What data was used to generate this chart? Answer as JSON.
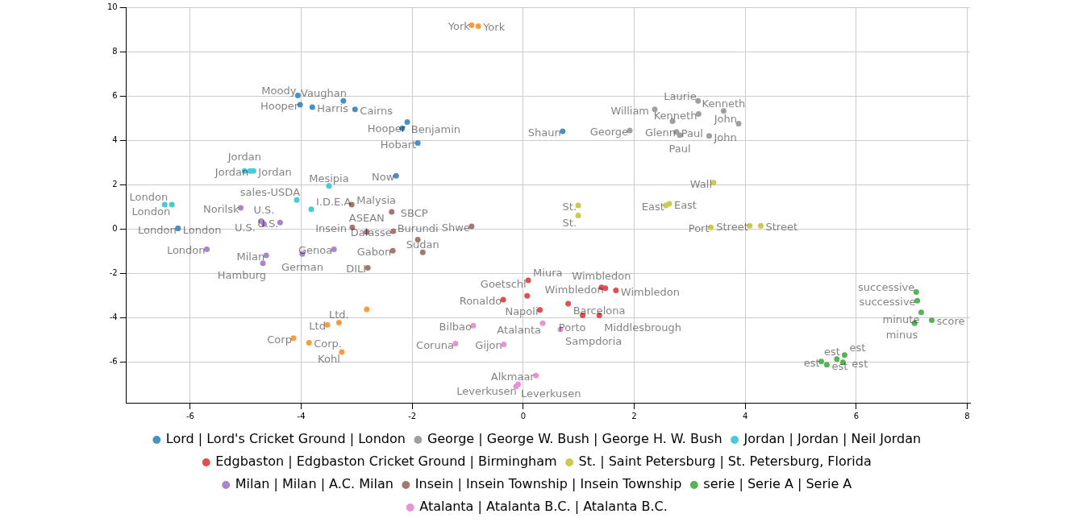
{
  "chart_data": {
    "type": "scatter",
    "xlim": [
      -7.15,
      8.05
    ],
    "ylim": [
      -7.85,
      10
    ],
    "xticks": [
      -6,
      -4,
      -2,
      0,
      2,
      4,
      6,
      8
    ],
    "yticks": [
      -6,
      -4,
      -2,
      0,
      2,
      4,
      6,
      8,
      10
    ],
    "grid": true,
    "legend": "bottom",
    "marker": "circle",
    "series": [
      {
        "name": "Lord | Lord's Cricket Ground | London",
        "color": "#4a90c2",
        "x": [
          -6.22,
          -4.06,
          -4.02,
          -3.8,
          -3.24,
          -3.03,
          -2.09,
          -2.18,
          -1.9,
          -2.29,
          0.71
        ],
        "values": [
          0.02,
          6.02,
          5.6,
          5.49,
          5.77,
          5.39,
          4.82,
          4.54,
          3.87,
          2.39,
          4.4
        ],
        "value_labels": [
          "London",
          "Moody",
          "Hooper",
          "Harris",
          "Vaughan",
          "Cairns",
          "Hooper",
          "Benjamin",
          "Hobart",
          "Now",
          "Shaun"
        ]
      },
      {
        "name": "George | George W. Bush | George H. W. Bush",
        "color": "#a0a0a0",
        "x": [
          1.92,
          2.37,
          3.15,
          3.16,
          3.61,
          2.69,
          2.76,
          2.82,
          3.35,
          3.88
        ],
        "values": [
          4.44,
          5.39,
          5.77,
          5.18,
          5.32,
          4.86,
          4.37,
          4.23,
          4.19,
          4.75
        ],
        "value_labels": [
          "George",
          "William",
          "Laurie",
          "Kenneth",
          "Kenneth",
          "Glenn",
          "Paul",
          "Paul",
          "John",
          "John"
        ]
      },
      {
        "name": "Jordan | Jordan | Neil Jordan",
        "color": "#45cbd9",
        "x": [
          -6.46,
          -6.33,
          -5.02,
          -4.92,
          -4.86,
          -3.5,
          -4.08,
          -3.82
        ],
        "values": [
          1.09,
          1.09,
          2.61,
          2.61,
          2.61,
          1.94,
          1.3,
          0.88
        ],
        "value_labels": [
          "London",
          "London",
          "Jordan",
          "Jordan",
          "Jordan",
          "Mesipia",
          "sales-USDA",
          "I.D.E.A"
        ]
      },
      {
        "name": "Edgbaston | Edgbaston Cricket Ground | Birmingham",
        "color": "#e05050",
        "x": [
          0.09,
          0.07,
          -0.36,
          0.3,
          0.81,
          1.07,
          1.37,
          1.41,
          1.48,
          1.67
        ],
        "values": [
          -2.32,
          -3.02,
          -3.2,
          -3.66,
          -3.38,
          -3.91,
          -3.91,
          -2.64,
          -2.68,
          -2.78
        ],
        "value_labels": [
          "Miura",
          "Goetschl",
          "Ronaldo",
          "Napoli",
          "Barcelona",
          "Porto",
          "Middlesbrough",
          "Wimbledon",
          "Wimbledon",
          "Wimbledon"
        ]
      },
      {
        "name": "St. | Saint Petersburg | St. Petersburg, Florida",
        "color": "#c9ca4e",
        "x": [
          0.99,
          0.99,
          3.43,
          2.57,
          2.63,
          3.38,
          4.08,
          4.28
        ],
        "values": [
          1.06,
          0.6,
          2.08,
          1.06,
          1.13,
          0.07,
          0.14,
          0.14
        ],
        "value_labels": [
          "St.",
          "St.",
          "Wall",
          "East",
          "East",
          "Port",
          "Street",
          "Street"
        ]
      },
      {
        "name": "Milan | Milan | A.C. Milan",
        "color": "#a886cc",
        "x": [
          -6.22,
          -5.09,
          -4.72,
          -4.67,
          -4.38,
          -5.7,
          -4.63,
          -4.69,
          -3.98,
          -3.41
        ],
        "values": [
          0.02,
          0.95,
          0.35,
          0.21,
          0.28,
          -0.92,
          -1.2,
          -1.55,
          -1.13,
          -0.92
        ],
        "value_labels": [
          "London",
          "Norilsk",
          "U.S.",
          "U.S.",
          "U.S.",
          "London",
          "Milan",
          "Hamburg",
          "German",
          "Genoa"
        ]
      },
      {
        "color": "#ff9a3e",
        "x": [
          -0.93,
          -0.81,
          -2.82,
          -3.32,
          -3.53,
          -4.14,
          -3.86,
          -3.27
        ],
        "values": [
          9.19,
          9.15,
          -3.63,
          -4.23,
          -4.33,
          -4.93,
          -5.14,
          -5.56
        ],
        "value_labels": [
          "York",
          "York",
          null,
          "Ltd.",
          "Ltd",
          "Corp",
          "Corp.",
          "Kohl"
        ]
      },
      {
        "name": "Insein | Insein Township | Insein Township",
        "color": "#a47870",
        "x": [
          -3.09,
          -2.37,
          -3.08,
          -2.82,
          -2.34,
          -1.9,
          -2.35,
          -1.81,
          -2.8,
          -0.93
        ],
        "values": [
          1.09,
          0.77,
          0.07,
          -0.14,
          -0.11,
          -0.49,
          -0.99,
          -1.06,
          -1.76,
          0.11
        ],
        "value_labels": [
          "Malysia",
          "SBCP",
          "Insein",
          "ASEAN",
          "Dalasse",
          "Burundi",
          "Gabon",
          "Sudan",
          "DILI",
          "Shwe"
        ]
      },
      {
        "name": "serie | Serie A | Serie A",
        "color": "#56b356",
        "x": [
          7.08,
          7.1,
          7.17,
          7.36,
          7.05,
          5.37,
          5.47,
          5.65,
          5.76,
          5.79
        ],
        "values": [
          -2.85,
          -3.24,
          -3.77,
          -4.12,
          -4.26,
          -5.99,
          -6.13,
          -5.88,
          -6.02,
          -5.7
        ],
        "value_labels": [
          "successive",
          "successive",
          "minute",
          "score",
          "minus",
          "est",
          "est",
          "est",
          "est",
          "est"
        ]
      },
      {
        "name": "Atalanta | Atalanta B.C. | Atalanta B.C.",
        "color": "#e994d2",
        "x": [
          -0.9,
          -0.35,
          -1.22,
          0.35,
          0.67,
          0.23,
          -0.09,
          -0.13
        ],
        "values": [
          -4.37,
          -5.21,
          -5.18,
          -4.26,
          -4.54,
          -6.62,
          -7.01,
          -7.11
        ],
        "value_labels": [
          "Bilbao",
          "Gijon",
          "Coruna",
          "Atalanta",
          "Sampdoria",
          "Alkmaar",
          "Leverkusen",
          "Leverkusen"
        ]
      }
    ]
  }
}
